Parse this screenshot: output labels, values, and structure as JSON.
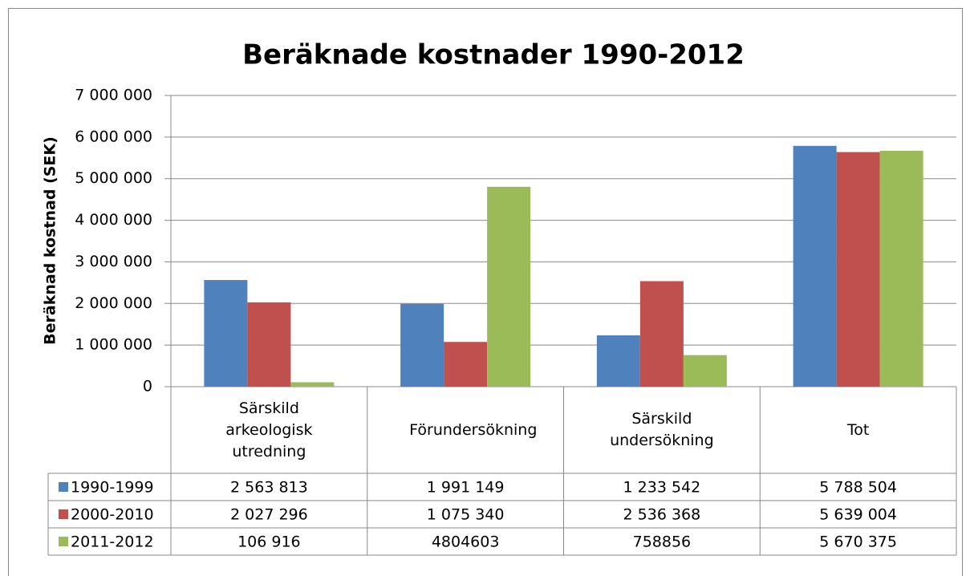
{
  "chart_data": {
    "type": "bar",
    "title": "Beräknade kostnader 1990-2012",
    "y_label": "Beräknad kostnad (SEK)",
    "categories": [
      "Särskild arkeologisk utredning",
      "Förundersökning",
      "Särskild undersökning",
      "Tot"
    ],
    "series": [
      {
        "name": "1990-1999",
        "color": "#4f81bd",
        "values": [
          2563813,
          1991149,
          1233542,
          5788504
        ],
        "value_labels": [
          "2 563 813",
          "1 991 149",
          "1 233 542",
          "5 788 504"
        ]
      },
      {
        "name": "2000-2010",
        "color": "#c0504d",
        "values": [
          2027296,
          1075340,
          2536368,
          5639004
        ],
        "value_labels": [
          "2 027 296",
          "1 075 340",
          "2 536 368",
          "5 639 004"
        ]
      },
      {
        "name": "2011-2012",
        "color": "#9bbb59",
        "values": [
          106916,
          4804603,
          758856,
          5670375
        ],
        "value_labels": [
          "106 916",
          "4804603",
          "758856",
          "5 670 375"
        ]
      }
    ],
    "ylim": [
      0,
      7000000
    ],
    "yticks": [
      0,
      {
        "value": 1000000,
        "label": "1 000 000"
      },
      {
        "value": 2000000,
        "label": "2 000 000"
      },
      {
        "value": 3000000,
        "label": "3 000 000"
      },
      {
        "value": 4000000,
        "label": "4 000 000"
      },
      {
        "value": 5000000,
        "label": "5 000 000"
      },
      {
        "value": 6000000,
        "label": "6 000 000"
      },
      {
        "value": 7000000,
        "label": "7 000 000"
      }
    ],
    "grid": true
  }
}
